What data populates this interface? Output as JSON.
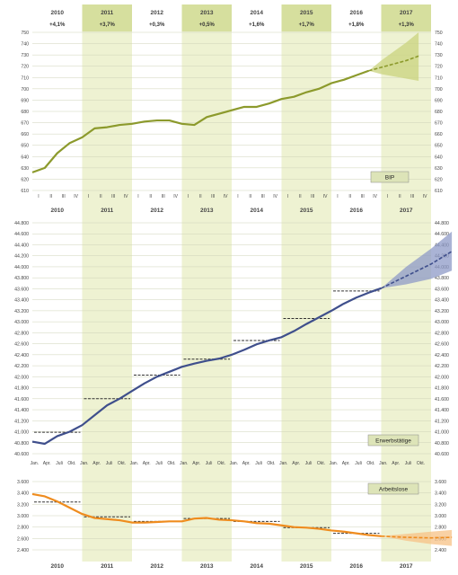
{
  "colors": {
    "band": "#eef2d2",
    "band_top": "#d6df9e",
    "grid": "#cfd3b8",
    "bip": "#8c9a2c",
    "bip_fan": "#c9d37e",
    "emp": "#3f4f8c",
    "emp_fan": "#8d9ac7",
    "unemp": "#ef8c1e",
    "unemp_fan": "#f7c186",
    "avg": "#333333",
    "label_box": "#dde4b8"
  },
  "years": [
    "2010",
    "2011",
    "2012",
    "2013",
    "2014",
    "2015",
    "2016",
    "2017"
  ],
  "chart_data": [
    {
      "type": "line",
      "label": "BIP",
      "growth_labels": [
        "+4,1%",
        "+3,7%",
        "+0,3%",
        "+0,5%",
        "+1,6%",
        "+1,7%",
        "+1,8%",
        "+1,3%"
      ],
      "quarter_ticks": [
        "I",
        "II",
        "III",
        "IV"
      ],
      "ylim": [
        610,
        750
      ],
      "yticks": [
        610,
        620,
        630,
        640,
        650,
        660,
        670,
        680,
        690,
        700,
        710,
        720,
        730,
        740,
        750
      ],
      "x": [
        0,
        1,
        2,
        3,
        4,
        5,
        6,
        7,
        8,
        9,
        10,
        11,
        12,
        13,
        14,
        15,
        16,
        17,
        18,
        19,
        20,
        21,
        22,
        23,
        24,
        25,
        26,
        27
      ],
      "values": [
        626,
        630,
        643,
        652,
        657,
        665,
        666,
        668,
        669,
        671,
        672,
        672,
        669,
        668,
        675,
        678,
        681,
        684,
        684,
        687,
        691,
        693,
        697,
        700,
        705,
        708,
        712,
        716
      ],
      "forecast": {
        "x": [
          27,
          28,
          29,
          30,
          31
        ],
        "values": [
          716,
          719,
          722,
          725,
          729
        ],
        "low": [
          716,
          713,
          711,
          709,
          707
        ],
        "high": [
          716,
          725,
          733,
          741,
          750
        ]
      }
    },
    {
      "type": "line",
      "label": "Erwerbstätige",
      "month_ticks": [
        "Jan.",
        "Apr.",
        "Juli",
        "Okt."
      ],
      "ylim": [
        40600,
        44800
      ],
      "yticks": [
        "40.600",
        "40.800",
        "41.000",
        "41.200",
        "41.400",
        "41.600",
        "41.800",
        "42.000",
        "42.200",
        "42.400",
        "42.600",
        "42.800",
        "43.000",
        "43.200",
        "43.400",
        "43.600",
        "43.800",
        "44.000",
        "44.200",
        "44.400",
        "44.600",
        "44.800"
      ],
      "x": [
        0,
        3,
        6,
        9,
        12,
        15,
        18,
        21,
        24,
        27,
        30,
        33,
        36,
        39,
        42,
        45,
        48,
        51,
        54,
        57,
        60,
        63,
        66,
        69,
        72,
        75,
        78,
        81,
        84
      ],
      "values": [
        40820,
        40780,
        40920,
        41000,
        41120,
        41300,
        41480,
        41600,
        41740,
        41880,
        42000,
        42090,
        42180,
        42240,
        42290,
        42330,
        42400,
        42490,
        42590,
        42660,
        42720,
        42830,
        42960,
        43080,
        43200,
        43330,
        43440,
        43530,
        43610
      ],
      "annual_avg": [
        40990,
        41600,
        42030,
        42320,
        42660,
        43060,
        43560
      ],
      "forecast": {
        "x": [
          84,
          90,
          96,
          101
        ],
        "values": [
          43610,
          43830,
          44050,
          44280
        ],
        "low": [
          43610,
          43680,
          43780,
          43930
        ],
        "high": [
          43610,
          44000,
          44330,
          44640
        ]
      }
    },
    {
      "type": "line",
      "label": "Arbeitslose",
      "ylim": [
        2400,
        3600
      ],
      "yticks": [
        "2.400",
        "2.600",
        "2.800",
        "3.000",
        "3.200",
        "3.400",
        "3.600"
      ],
      "x": [
        0,
        3,
        6,
        9,
        12,
        15,
        18,
        21,
        24,
        27,
        30,
        33,
        36,
        39,
        42,
        45,
        48,
        51,
        54,
        57,
        60,
        63,
        66,
        69,
        72,
        75,
        78,
        81,
        84
      ],
      "values": [
        3380,
        3340,
        3250,
        3140,
        3030,
        2960,
        2940,
        2920,
        2880,
        2880,
        2890,
        2900,
        2900,
        2950,
        2960,
        2930,
        2920,
        2900,
        2870,
        2860,
        2830,
        2800,
        2790,
        2770,
        2740,
        2720,
        2690,
        2660,
        2640
      ],
      "annual_avg": [
        3240,
        2980,
        2900,
        2950,
        2900,
        2790,
        2690
      ],
      "forecast": {
        "x": [
          84,
          90,
          96,
          101
        ],
        "values": [
          2640,
          2620,
          2610,
          2620
        ],
        "low": [
          2640,
          2560,
          2500,
          2470
        ],
        "high": [
          2640,
          2680,
          2720,
          2750
        ]
      }
    }
  ]
}
